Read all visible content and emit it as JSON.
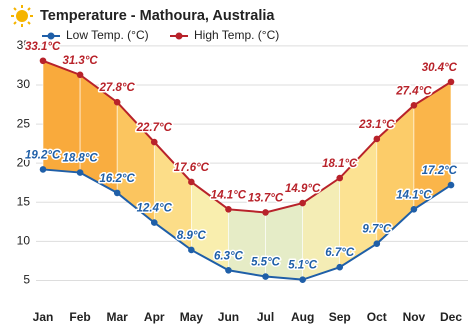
{
  "chart_data": {
    "type": "line",
    "title": "Temperature - Mathoura, Australia",
    "categories": [
      "Jan",
      "Feb",
      "Mar",
      "Apr",
      "May",
      "Jun",
      "Jul",
      "Aug",
      "Sep",
      "Oct",
      "Nov",
      "Dec"
    ],
    "series": [
      {
        "name": "Low Temp. (°C)",
        "color": "#1f5fa8",
        "values": [
          19.2,
          18.8,
          16.2,
          12.4,
          8.9,
          6.3,
          5.5,
          5.1,
          6.7,
          9.7,
          14.1,
          17.2
        ],
        "value_labels": [
          "19.2°C",
          "18.8°C",
          "16.2°C",
          "12.4°C",
          "8.9°C",
          "6.3°C",
          "5.5°C",
          "5.1°C",
          "6.7°C",
          "9.7°C",
          "14.1°C",
          "17.2°C"
        ]
      },
      {
        "name": "High Temp. (°C)",
        "color": "#b8222a",
        "values": [
          33.1,
          31.3,
          27.8,
          22.7,
          17.6,
          14.1,
          13.7,
          14.9,
          18.1,
          23.1,
          27.4,
          30.4
        ],
        "value_labels": [
          "33.1°C",
          "31.3°C",
          "27.8°C",
          "22.7°C",
          "17.6°C",
          "14.1°C",
          "13.7°C",
          "14.9°C",
          "18.1°C",
          "23.1°C",
          "27.4°C",
          "30.4°C"
        ]
      }
    ],
    "ylim": [
      2.5,
      35.5
    ],
    "yticks": [
      5,
      10,
      15,
      20,
      25,
      30,
      35
    ],
    "grid": true
  }
}
